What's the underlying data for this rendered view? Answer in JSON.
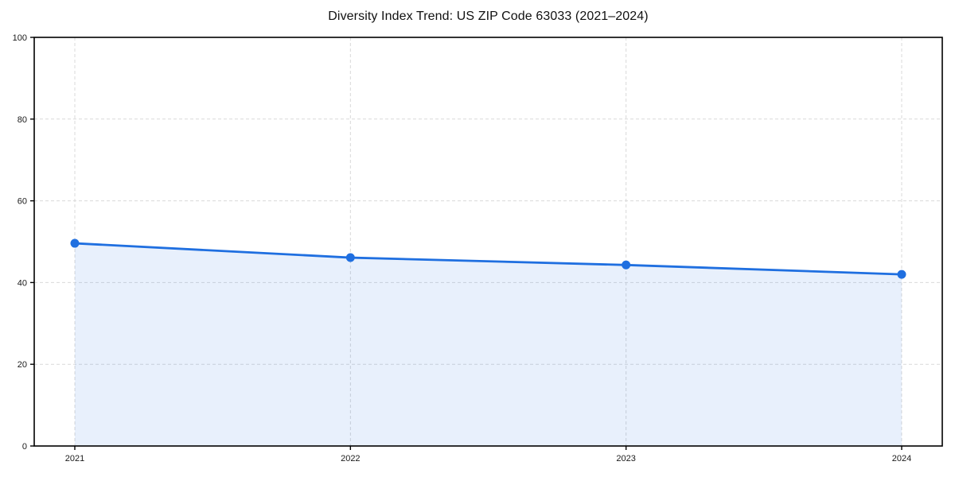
{
  "figure": {
    "background": "#ffffff"
  },
  "chart_data": {
    "type": "area",
    "title": "Diversity Index Trend: US ZIP Code 63033 (2021–2024)",
    "categories": [
      "2021",
      "2022",
      "2023",
      "2024"
    ],
    "series": [
      {
        "name": "Diversity Index",
        "values": [
          49.6,
          46.1,
          44.3,
          42.0
        ]
      }
    ],
    "xlabel": "",
    "ylabel": "",
    "ylim": [
      0,
      100
    ],
    "yticks": [
      0,
      20,
      40,
      60,
      80,
      100
    ],
    "grid": true,
    "grid_style": "dashed",
    "legend_position": "none",
    "colors": {
      "line": "#1f6fe0",
      "marker": "#1f6fe0",
      "fill": "#1f6fe0",
      "fill_opacity": 0.1,
      "grid": "#d9d9d9",
      "axis": "#000000",
      "tick_text": "#1a1a1a",
      "title_text": "#111111",
      "background": "#ffffff"
    }
  }
}
